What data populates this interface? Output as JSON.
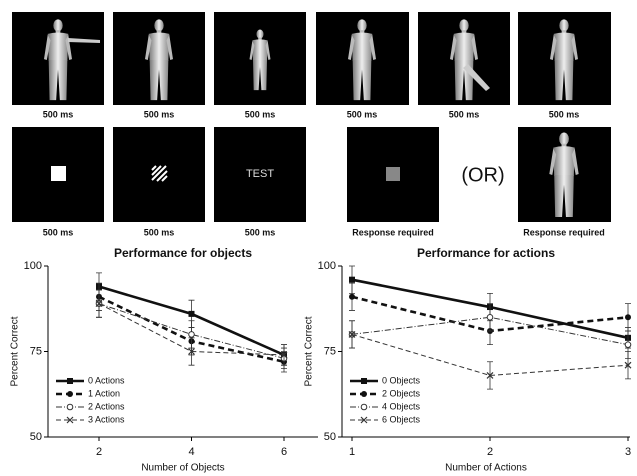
{
  "stimuli": {
    "row1_captions": [
      "500 ms",
      "500 ms",
      "500 ms",
      "500 ms",
      "500 ms",
      "500 ms"
    ],
    "row2_captions": [
      "500 ms",
      "500 ms",
      "500 ms",
      "Response required",
      "Response required"
    ],
    "test_text": "TEST",
    "or_text": "(OR)"
  },
  "chart_data": [
    {
      "type": "line",
      "title": "Performance for objects",
      "x_label": "Number of Objects",
      "y_label": "Percent Correct",
      "categories": [
        "2",
        "4",
        "6"
      ],
      "ylim": [
        50,
        100
      ],
      "yticks": [
        50,
        75,
        100
      ],
      "series": [
        {
          "name": "0 Actions",
          "color": "#111111",
          "dash": "none",
          "width": 2.6,
          "marker": "square",
          "values": [
            94,
            86,
            74
          ],
          "errors": [
            4,
            4,
            3
          ]
        },
        {
          "name": "1 Action",
          "color": "#111111",
          "dash": "6,4",
          "width": 2.6,
          "marker": "dot",
          "values": [
            91,
            78,
            72
          ],
          "errors": [
            4,
            4,
            3
          ]
        },
        {
          "name": "2 Actions",
          "color": "#333333",
          "dash": "6,2,1,2",
          "width": 1,
          "marker": "circle",
          "values": [
            89,
            80,
            73
          ],
          "errors": [
            4,
            4,
            3
          ]
        },
        {
          "name": "3 Actions",
          "color": "#333333",
          "dash": "5,3",
          "width": 1,
          "marker": "cross",
          "values": [
            89,
            75,
            74
          ],
          "errors": [
            4,
            4,
            3
          ]
        }
      ]
    },
    {
      "type": "line",
      "title": "Performance for actions",
      "x_label": "Number of Actions",
      "y_label": "Percent Correct",
      "categories": [
        "1",
        "2",
        "3"
      ],
      "ylim": [
        50,
        100
      ],
      "yticks": [
        50,
        75,
        100
      ],
      "series": [
        {
          "name": "0 Objects",
          "color": "#111111",
          "dash": "none",
          "width": 2.6,
          "marker": "square",
          "values": [
            96,
            88,
            79
          ],
          "errors": [
            4,
            4,
            3
          ]
        },
        {
          "name": "2 Objects",
          "color": "#111111",
          "dash": "6,4",
          "width": 2.6,
          "marker": "dot",
          "values": [
            91,
            81,
            85
          ],
          "errors": [
            4,
            4,
            4
          ]
        },
        {
          "name": "4 Objects",
          "color": "#333333",
          "dash": "6,2,1,2",
          "width": 1,
          "marker": "circle",
          "values": [
            80,
            85,
            77
          ],
          "errors": [
            4,
            4,
            4
          ]
        },
        {
          "name": "6 Objects",
          "color": "#333333",
          "dash": "5,3",
          "width": 1,
          "marker": "cross",
          "values": [
            80,
            68,
            71
          ],
          "errors": [
            4,
            4,
            4
          ]
        }
      ]
    }
  ]
}
